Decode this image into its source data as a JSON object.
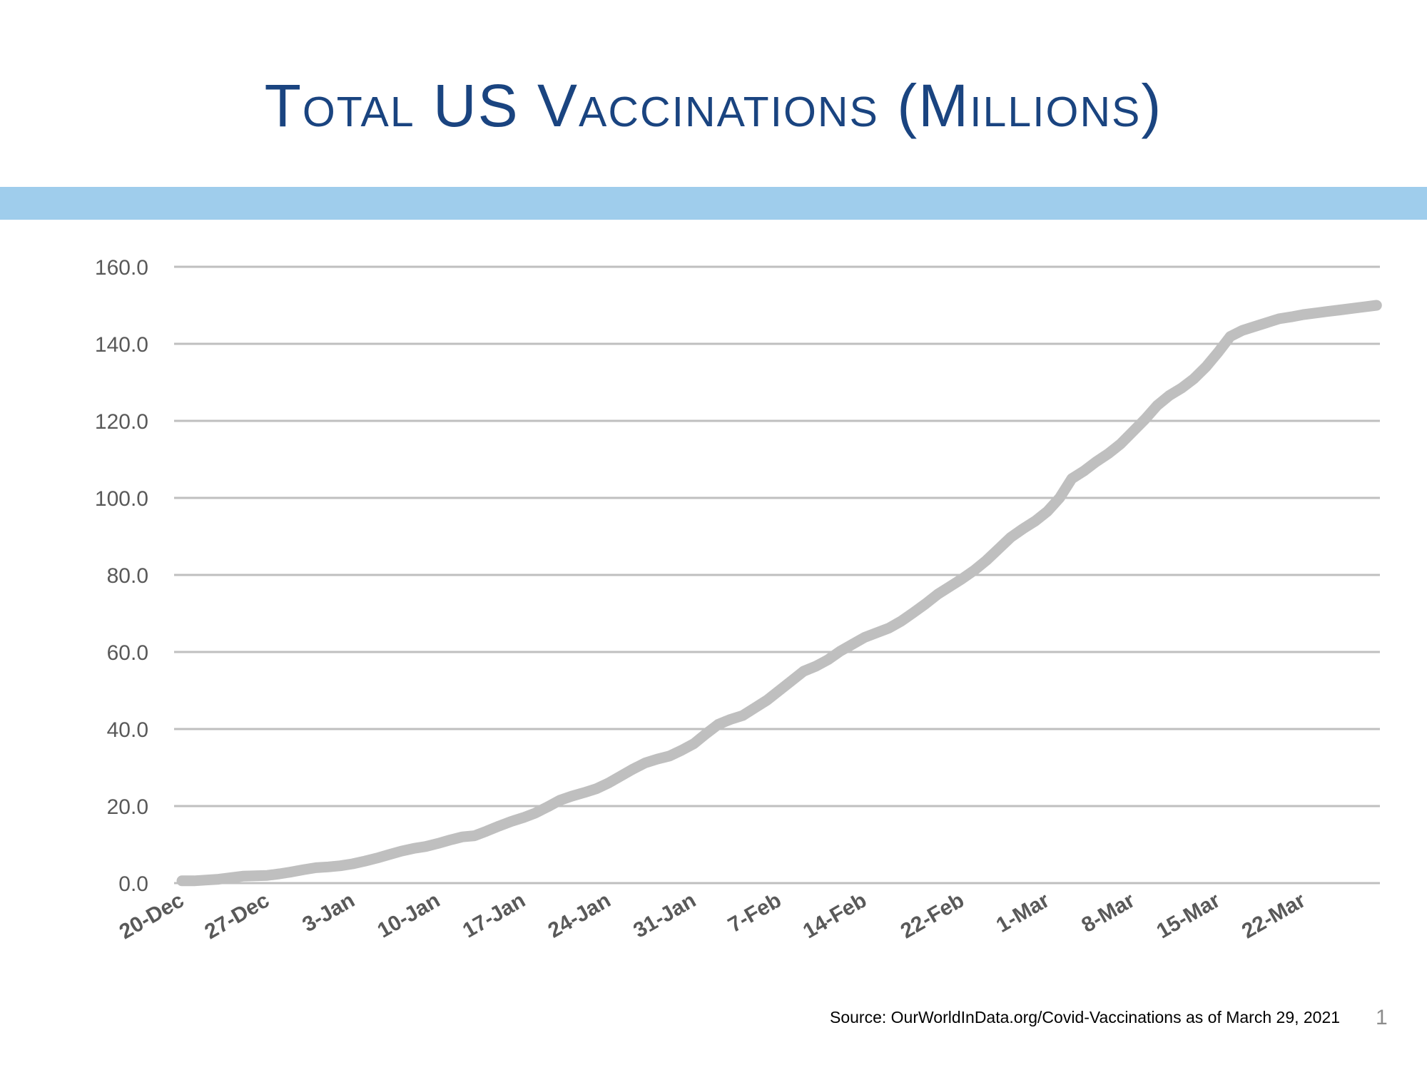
{
  "slide": {
    "title": "Total US Vaccinations (Millions)",
    "source": "Source:  OurWorldInData.org/Covid-Vaccinations as of March 29, 2021",
    "page_number": "1"
  },
  "colors": {
    "title": "#1a4480",
    "band": "#9fcdec",
    "series_line": "#bfbfbf",
    "gridline": "#bfbfbf",
    "tick_text": "#595959"
  },
  "chart_data": {
    "type": "line",
    "title": "",
    "xlabel": "",
    "ylabel": "",
    "ylim": [
      0,
      160
    ],
    "y_ticks": [
      "0.0",
      "20.0",
      "40.0",
      "60.0",
      "80.0",
      "100.0",
      "120.0",
      "140.0",
      "160.0"
    ],
    "x_tick_labels": [
      "20-Dec",
      "27-Dec",
      "3-Jan",
      "10-Jan",
      "17-Jan",
      "24-Jan",
      "31-Jan",
      "7-Feb",
      "14-Feb",
      "22-Feb",
      "1-Mar",
      "8-Mar",
      "15-Mar",
      "22-Mar"
    ],
    "x_range": [
      "20-Dec",
      "28-Mar"
    ],
    "grid": "horizontal",
    "legend": "none",
    "series": [
      {
        "x": [
          "20-Dec",
          "21-Dec",
          "22-Dec",
          "23-Dec",
          "24-Dec",
          "25-Dec",
          "26-Dec",
          "27-Dec",
          "28-Dec",
          "29-Dec",
          "30-Dec",
          "31-Dec",
          "1-Jan",
          "2-Jan",
          "3-Jan",
          "4-Jan",
          "5-Jan",
          "6-Jan",
          "7-Jan",
          "8-Jan",
          "9-Jan",
          "10-Jan",
          "11-Jan",
          "12-Jan",
          "13-Jan",
          "14-Jan",
          "15-Jan",
          "16-Jan",
          "17-Jan",
          "18-Jan",
          "19-Jan",
          "20-Jan",
          "21-Jan",
          "22-Jan",
          "23-Jan",
          "24-Jan",
          "25-Jan",
          "26-Jan",
          "27-Jan",
          "28-Jan",
          "29-Jan",
          "30-Jan",
          "31-Jan",
          "1-Feb",
          "2-Feb",
          "3-Feb",
          "4-Feb",
          "5-Feb",
          "6-Feb",
          "7-Feb",
          "8-Feb",
          "9-Feb",
          "10-Feb",
          "11-Feb",
          "12-Feb",
          "13-Feb",
          "14-Feb",
          "15-Feb",
          "16-Feb",
          "17-Feb",
          "18-Feb",
          "19-Feb",
          "20-Feb",
          "21-Feb",
          "22-Feb",
          "23-Feb",
          "24-Feb",
          "25-Feb",
          "26-Feb",
          "27-Feb",
          "28-Feb",
          "1-Mar",
          "2-Mar",
          "3-Mar",
          "4-Mar",
          "5-Mar",
          "6-Mar",
          "7-Mar",
          "8-Mar",
          "9-Mar",
          "10-Mar",
          "11-Mar",
          "12-Mar",
          "13-Mar",
          "14-Mar",
          "15-Mar",
          "16-Mar",
          "17-Mar",
          "18-Mar",
          "19-Mar",
          "20-Mar",
          "21-Mar",
          "22-Mar",
          "23-Mar",
          "24-Mar",
          "25-Mar",
          "26-Mar",
          "27-Mar",
          "28-Mar"
        ],
        "values": [
          0.6,
          0.6,
          0.8,
          1.0,
          1.4,
          1.8,
          1.9,
          2.0,
          2.4,
          2.9,
          3.5,
          4.0,
          4.2,
          4.5,
          5.0,
          5.7,
          6.5,
          7.4,
          8.3,
          9.0,
          9.5,
          10.3,
          11.2,
          12.0,
          12.3,
          13.5,
          14.8,
          16.0,
          17.0,
          18.2,
          19.8,
          21.5,
          22.6,
          23.5,
          24.5,
          26.0,
          27.8,
          29.6,
          31.2,
          32.2,
          33.0,
          34.5,
          36.2,
          38.8,
          41.2,
          42.5,
          43.5,
          45.5,
          47.5,
          50.0,
          52.5,
          55.0,
          56.3,
          58.0,
          60.2,
          62.0,
          63.8,
          65.0,
          66.2,
          68.0,
          70.2,
          72.5,
          75.0,
          77.0,
          79.0,
          81.2,
          83.8,
          86.8,
          89.8,
          92.0,
          94.0,
          96.5,
          100.0,
          105.0,
          107.0,
          109.4,
          111.5,
          114.0,
          117.2,
          120.4,
          124.0,
          126.6,
          128.5,
          130.9,
          134.0,
          137.8,
          141.9,
          143.5,
          144.5,
          145.5,
          146.5,
          147.0,
          147.6,
          148.0,
          148.4,
          148.8,
          149.2,
          149.6,
          150.0
        ]
      }
    ]
  }
}
